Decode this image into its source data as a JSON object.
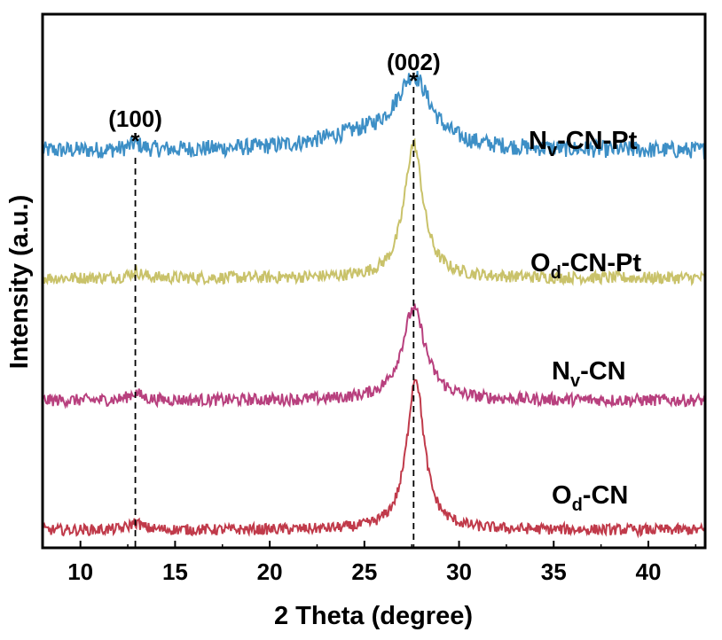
{
  "chart_data": {
    "type": "line",
    "xlabel": "2 Theta (degree)",
    "ylabel": "Intensity (a.u.)",
    "xlim": [
      8,
      43
    ],
    "xticks": [
      10,
      15,
      20,
      25,
      30,
      35,
      40
    ],
    "xtick_labels": [
      "10",
      "15",
      "20",
      "25",
      "30",
      "35",
      "40"
    ],
    "yticks": [],
    "reference_lines": [
      12.9,
      27.6
    ],
    "annotations": [
      {
        "label": "(100)",
        "marker": "*",
        "x": 12.9
      },
      {
        "label": "(002)",
        "marker": "*",
        "x": 27.6
      }
    ],
    "series": [
      {
        "name": "Nv-CN-Pt",
        "name_main": "N",
        "name_sub": "v",
        "name_rest": "-CN-Pt",
        "color": "#3d8fc6",
        "offset": 3.0,
        "baseline": 0.1,
        "noise": 0.07,
        "peaks": [
          {
            "center": 27.6,
            "height": 0.55,
            "width": 1.1
          },
          {
            "center": 25.0,
            "height": 0.12,
            "width": 3.0
          },
          {
            "center": 12.9,
            "height": 0.05,
            "width": 0.4
          }
        ]
      },
      {
        "name": "Od-CN-Pt",
        "name_main": "O",
        "name_sub": "d",
        "name_rest": "-CN-Pt",
        "color": "#c9c26a",
        "offset": 2.0,
        "baseline": 0.06,
        "noise": 0.05,
        "peaks": [
          {
            "center": 27.6,
            "height": 1.1,
            "width": 0.6
          },
          {
            "center": 12.9,
            "height": 0.05,
            "width": 0.4
          }
        ]
      },
      {
        "name": "Nv-CN",
        "name_main": "N",
        "name_sub": "v",
        "name_rest": "-CN",
        "color": "#b8407e",
        "offset": 1.0,
        "baseline": 0.06,
        "noise": 0.05,
        "peaks": [
          {
            "center": 27.6,
            "height": 0.75,
            "width": 0.75
          },
          {
            "center": 12.9,
            "height": 0.06,
            "width": 0.4
          }
        ]
      },
      {
        "name": "Od-CN",
        "name_main": "O",
        "name_sub": "d",
        "name_rest": "-CN",
        "color": "#c03a4a",
        "offset": 0.0,
        "baseline": 0.0,
        "noise": 0.045,
        "peaks": [
          {
            "center": 27.7,
            "height": 1.25,
            "width": 0.55
          },
          {
            "center": 12.9,
            "height": 0.06,
            "width": 0.4
          }
        ]
      }
    ]
  }
}
